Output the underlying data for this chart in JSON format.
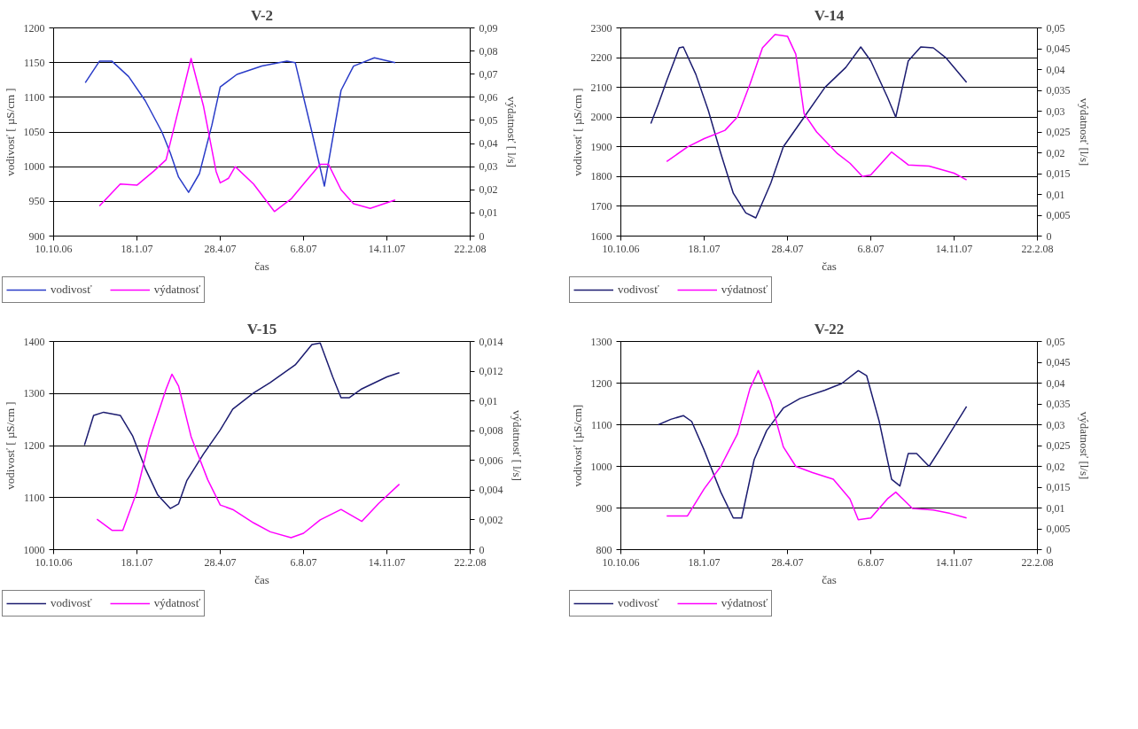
{
  "chart_data": [
    {
      "type": "line",
      "title": "V-2",
      "xlabel": "čas",
      "ylabel": "vodivosť [ µS/cm ]",
      "y2label": "výdatnosť [ l/s]",
      "legend": "bottom",
      "grid": "y",
      "line_style": "solid",
      "xlim": [
        "2006-10-10",
        "2008-02-22"
      ],
      "xticks": [
        {
          "value": "2006-10-10",
          "label": "10.10.06"
        },
        {
          "value": "2007-01-18",
          "label": "18.1.07"
        },
        {
          "value": "2007-04-28",
          "label": "28.4.07"
        },
        {
          "value": "2007-08-06",
          "label": "6.8.07"
        },
        {
          "value": "2007-11-14",
          "label": "14.11.07"
        },
        {
          "value": "2008-02-22",
          "label": "22.2.08"
        }
      ],
      "ylim": [
        900,
        1200
      ],
      "yticks": [
        900,
        950,
        1000,
        1050,
        1100,
        1150,
        1200
      ],
      "y2lim": [
        0,
        0.09
      ],
      "y2ticks": [
        {
          "value": 0,
          "label": "0"
        },
        {
          "value": 0.01,
          "label": "0,01"
        },
        {
          "value": 0.02,
          "label": "0,02"
        },
        {
          "value": 0.03,
          "label": "0,03"
        },
        {
          "value": 0.04,
          "label": "0,04"
        },
        {
          "value": 0.05,
          "label": "0,05"
        },
        {
          "value": 0.06,
          "label": "0,06"
        },
        {
          "value": 0.07,
          "label": "0,07"
        },
        {
          "value": 0.08,
          "label": "0,08"
        },
        {
          "value": 0.09,
          "label": "0,09"
        }
      ],
      "series": [
        {
          "name": "vodivosť",
          "color": "#2a3cc8",
          "x": [
            "2006-11-17",
            "2006-12-04",
            "2006-12-19",
            "2007-01-08",
            "2007-01-28",
            "2007-02-17",
            "2007-02-27",
            "2007-03-09",
            "2007-03-21",
            "2007-04-03",
            "2007-04-18",
            "2007-04-28",
            "2007-05-18",
            "2007-06-17",
            "2007-07-17",
            "2007-07-27",
            "2007-08-16",
            "2007-08-31",
            "2007-09-20",
            "2007-10-05",
            "2007-10-30",
            "2007-11-24"
          ],
          "values": [
            1121,
            1152,
            1152,
            1130,
            1095,
            1050,
            1020,
            985,
            963,
            990,
            1060,
            1115,
            1133,
            1145,
            1152,
            1150,
            1050,
            972,
            1110,
            1145,
            1157,
            1150
          ]
        },
        {
          "name": "výdatnosť",
          "color": "#ff00ff",
          "axis": "y2",
          "x": [
            "2006-12-04",
            "2006-12-29",
            "2007-01-18",
            "2007-02-07",
            "2007-02-22",
            "2007-03-24",
            "2007-04-08",
            "2007-04-23",
            "2007-04-28",
            "2007-05-08",
            "2007-05-16",
            "2007-06-07",
            "2007-07-02",
            "2007-07-22",
            "2007-08-06",
            "2007-08-26",
            "2007-09-05",
            "2007-09-20",
            "2007-10-05",
            "2007-10-25",
            "2007-11-24"
          ],
          "values": [
            0.013,
            0.0225,
            0.022,
            0.028,
            0.033,
            0.0768,
            0.056,
            0.028,
            0.023,
            0.025,
            0.03,
            0.0225,
            0.0106,
            0.016,
            0.0225,
            0.031,
            0.031,
            0.02,
            0.014,
            0.012,
            0.0156
          ]
        }
      ]
    },
    {
      "type": "line",
      "title": "V-14",
      "xlabel": "čas",
      "ylabel": "vodivosť [ µS/cm ]",
      "y2label": "výdatnosť [l/s]",
      "legend": "bottom",
      "grid": "y",
      "line_style": "solid",
      "xlim": [
        "2006-10-10",
        "2008-02-22"
      ],
      "xticks": [
        {
          "value": "2006-10-10",
          "label": "10.10.06"
        },
        {
          "value": "2007-01-18",
          "label": "18.1.07"
        },
        {
          "value": "2007-04-28",
          "label": "28.4.07"
        },
        {
          "value": "2007-08-06",
          "label": "6.8.07"
        },
        {
          "value": "2007-11-14",
          "label": "14.11.07"
        },
        {
          "value": "2008-02-22",
          "label": "22.2.08"
        }
      ],
      "ylim": [
        1600,
        2300
      ],
      "yticks": [
        1600,
        1700,
        1800,
        1900,
        2000,
        2100,
        2200,
        2300
      ],
      "y2lim": [
        0,
        0.05
      ],
      "y2ticks": [
        {
          "value": 0,
          "label": "0"
        },
        {
          "value": 0.005,
          "label": "0,005"
        },
        {
          "value": 0.01,
          "label": "0,01"
        },
        {
          "value": 0.015,
          "label": "0,015"
        },
        {
          "value": 0.02,
          "label": "0,02"
        },
        {
          "value": 0.025,
          "label": "0,025"
        },
        {
          "value": 0.03,
          "label": "0,03"
        },
        {
          "value": 0.035,
          "label": "0,035"
        },
        {
          "value": 0.04,
          "label": "0,04"
        },
        {
          "value": 0.045,
          "label": "0,045"
        },
        {
          "value": 0.05,
          "label": "0,05"
        }
      ],
      "series": [
        {
          "name": "vodivosť",
          "color": "#1c1c70",
          "x": [
            "2006-11-15",
            "2006-11-24",
            "2006-12-04",
            "2006-12-19",
            "2006-12-24",
            "2007-01-08",
            "2007-01-23",
            "2007-02-07",
            "2007-02-22",
            "2007-03-09",
            "2007-03-21",
            "2007-04-08",
            "2007-04-23",
            "2007-05-18",
            "2007-06-12",
            "2007-07-07",
            "2007-07-25",
            "2007-08-06",
            "2007-08-26",
            "2007-09-05",
            "2007-09-20",
            "2007-10-05",
            "2007-10-20",
            "2007-11-04",
            "2007-11-29"
          ],
          "values": [
            1978,
            2044,
            2122,
            2233,
            2236,
            2144,
            2022,
            1878,
            1744,
            1678,
            1661,
            1778,
            1900,
            2000,
            2100,
            2167,
            2236,
            2189,
            2067,
            2000,
            2189,
            2236,
            2233,
            2200,
            2117
          ]
        },
        {
          "name": "výdatnosť",
          "color": "#ff00ff",
          "axis": "y2",
          "x": [
            "2006-12-04",
            "2006-12-29",
            "2007-01-18",
            "2007-02-12",
            "2007-02-27",
            "2007-03-14",
            "2007-03-29",
            "2007-04-13",
            "2007-04-28",
            "2007-05-08",
            "2007-05-18",
            "2007-06-02",
            "2007-06-27",
            "2007-07-12",
            "2007-07-27",
            "2007-08-06",
            "2007-08-31",
            "2007-09-20",
            "2007-10-15",
            "2007-11-14",
            "2007-11-29"
          ],
          "values": [
            0.0179,
            0.0214,
            0.0234,
            0.0254,
            0.0286,
            0.0365,
            0.0452,
            0.0484,
            0.048,
            0.0437,
            0.0294,
            0.025,
            0.0198,
            0.0175,
            0.0143,
            0.0147,
            0.0202,
            0.0171,
            0.0168,
            0.0151,
            0.0135
          ]
        }
      ]
    },
    {
      "type": "line",
      "title": "V-15",
      "xlabel": "čas",
      "ylabel": "vodivosť [ µS/cm ]",
      "y2label": "výdatnosť [ l/s]",
      "legend": "bottom",
      "grid": "y",
      "line_style": "solid",
      "xlim": [
        "2006-10-10",
        "2008-02-22"
      ],
      "xticks": [
        {
          "value": "2006-10-10",
          "label": "10.10.06"
        },
        {
          "value": "2007-01-18",
          "label": "18.1.07"
        },
        {
          "value": "2007-04-28",
          "label": "28.4.07"
        },
        {
          "value": "2007-08-06",
          "label": "6.8.07"
        },
        {
          "value": "2007-11-14",
          "label": "14.11.07"
        },
        {
          "value": "2008-02-22",
          "label": "22.2.08"
        }
      ],
      "ylim": [
        1000,
        1400
      ],
      "yticks": [
        1000,
        1100,
        1200,
        1300,
        1400
      ],
      "y2lim": [
        0,
        0.014
      ],
      "y2ticks": [
        {
          "value": 0,
          "label": "0"
        },
        {
          "value": 0.002,
          "label": "0,002"
        },
        {
          "value": 0.004,
          "label": "0,004"
        },
        {
          "value": 0.006,
          "label": "0,006"
        },
        {
          "value": 0.008,
          "label": "0,008"
        },
        {
          "value": 0.01,
          "label": "0,01"
        },
        {
          "value": 0.012,
          "label": "0,012"
        },
        {
          "value": 0.014,
          "label": "0,014"
        }
      ],
      "series": [
        {
          "name": "vodivosť",
          "color": "#1c1c70",
          "x": [
            "2006-11-16",
            "2006-11-27",
            "2006-12-09",
            "2006-12-29",
            "2007-01-13",
            "2007-01-28",
            "2007-02-12",
            "2007-02-27",
            "2007-03-09",
            "2007-03-19",
            "2007-04-08",
            "2007-04-28",
            "2007-05-13",
            "2007-06-07",
            "2007-06-27",
            "2007-07-12",
            "2007-07-27",
            "2007-08-16",
            "2007-08-26",
            "2007-09-10",
            "2007-09-20",
            "2007-09-30",
            "2007-10-15",
            "2007-11-14",
            "2007-11-29"
          ],
          "values": [
            1201,
            1258,
            1264,
            1258,
            1218,
            1156,
            1105,
            1079,
            1088,
            1133,
            1184,
            1230,
            1270,
            1301,
            1321,
            1338,
            1355,
            1394,
            1397,
            1332,
            1292,
            1292,
            1309,
            1332,
            1340
          ]
        },
        {
          "name": "výdatnosť",
          "color": "#ff00ff",
          "axis": "y2",
          "x": [
            "2006-12-01",
            "2006-12-19",
            "2007-01-01",
            "2007-01-18",
            "2007-02-02",
            "2007-02-22",
            "2007-03-01",
            "2007-03-09",
            "2007-03-24",
            "2007-04-13",
            "2007-04-28",
            "2007-05-13",
            "2007-06-07",
            "2007-06-27",
            "2007-07-22",
            "2007-08-06",
            "2007-08-26",
            "2007-09-20",
            "2007-10-15",
            "2007-11-04",
            "2007-11-29"
          ],
          "values": [
            0.00205,
            0.0013,
            0.0013,
            0.0039,
            0.0074,
            0.0108,
            0.0118,
            0.011,
            0.0076,
            0.0047,
            0.003,
            0.0027,
            0.0018,
            0.0012,
            0.0008,
            0.0011,
            0.002,
            0.0027,
            0.0019,
            0.0031,
            0.0044
          ]
        }
      ]
    },
    {
      "type": "line",
      "title": "V-22",
      "xlabel": "čas",
      "ylabel": "vodivosť [µS/cm]",
      "y2label": "výdatnosť [l/s]",
      "legend": "bottom",
      "grid": "y",
      "line_style": "solid",
      "xlim": [
        "2006-10-10",
        "2008-02-22"
      ],
      "xticks": [
        {
          "value": "2006-10-10",
          "label": "10.10.06"
        },
        {
          "value": "2007-01-18",
          "label": "18.1.07"
        },
        {
          "value": "2007-04-28",
          "label": "28.4.07"
        },
        {
          "value": "2007-08-06",
          "label": "6.8.07"
        },
        {
          "value": "2007-11-14",
          "label": "14.11.07"
        },
        {
          "value": "2008-02-22",
          "label": "22.2.08"
        }
      ],
      "ylim": [
        800,
        1300
      ],
      "yticks": [
        800,
        900,
        1000,
        1100,
        1200,
        1300
      ],
      "y2lim": [
        0,
        0.05
      ],
      "y2ticks": [
        {
          "value": 0,
          "label": "0"
        },
        {
          "value": 0.005,
          "label": "0,005"
        },
        {
          "value": 0.01,
          "label": "0,01"
        },
        {
          "value": 0.015,
          "label": "0,015"
        },
        {
          "value": 0.02,
          "label": "0,02"
        },
        {
          "value": 0.025,
          "label": "0,025"
        },
        {
          "value": 0.03,
          "label": "0,03"
        },
        {
          "value": 0.035,
          "label": "0,035"
        },
        {
          "value": 0.04,
          "label": "0,04"
        },
        {
          "value": 0.045,
          "label": "0,045"
        },
        {
          "value": 0.05,
          "label": "0,05"
        }
      ],
      "series": [
        {
          "name": "vodivosť",
          "color": "#1c1c70",
          "x": [
            "2006-11-24",
            "2006-12-09",
            "2006-12-24",
            "2007-01-03",
            "2007-01-18",
            "2007-02-07",
            "2007-02-22",
            "2007-03-04",
            "2007-03-19",
            "2007-04-03",
            "2007-04-23",
            "2007-05-13",
            "2007-06-12",
            "2007-07-02",
            "2007-07-22",
            "2007-08-01",
            "2007-08-16",
            "2007-08-31",
            "2007-09-10",
            "2007-09-20",
            "2007-09-30",
            "2007-10-15",
            "2007-10-30",
            "2007-11-29"
          ],
          "values": [
            1100,
            1113,
            1122,
            1108,
            1039,
            938,
            876,
            876,
            1016,
            1086,
            1140,
            1163,
            1183,
            1199,
            1230,
            1218,
            1109,
            969,
            953,
            1031,
            1031,
            1000,
            1047,
            1144
          ]
        },
        {
          "name": "výdatnosť",
          "color": "#ff00ff",
          "axis": "y2",
          "x": [
            "2006-12-04",
            "2006-12-29",
            "2007-01-18",
            "2007-02-07",
            "2007-02-27",
            "2007-03-14",
            "2007-03-24",
            "2007-04-08",
            "2007-04-23",
            "2007-05-08",
            "2007-05-28",
            "2007-06-22",
            "2007-07-12",
            "2007-07-22",
            "2007-08-06",
            "2007-08-26",
            "2007-09-05",
            "2007-09-25",
            "2007-10-20",
            "2007-11-09",
            "2007-11-29"
          ],
          "values": [
            0.0081,
            0.0081,
            0.0146,
            0.02,
            0.0278,
            0.0387,
            0.043,
            0.0356,
            0.0247,
            0.02,
            0.0185,
            0.0169,
            0.0122,
            0.0072,
            0.0076,
            0.0122,
            0.0138,
            0.0099,
            0.0095,
            0.0087,
            0.0076
          ]
        }
      ]
    }
  ]
}
